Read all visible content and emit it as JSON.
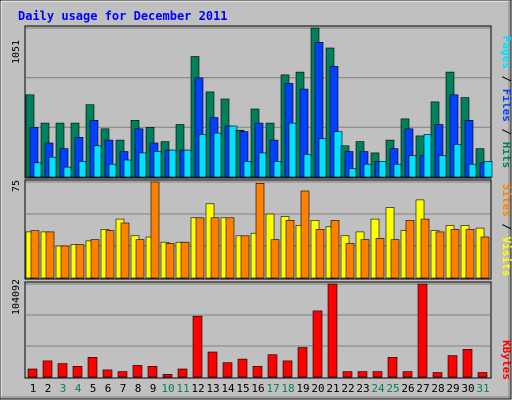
{
  "title": "Daily usage for December 2011",
  "colors": {
    "background": "#c0c0c0",
    "title": "#0000ff",
    "hits": "#00805c",
    "files": "#0040ff",
    "pages": "#00e0ff",
    "visits": "#ffff00",
    "sites": "#ff8000",
    "kbytes": "#ff0000",
    "weekend_day": "#00805c",
    "weekday": "#000000"
  },
  "chart_data": [
    {
      "type": "bar",
      "panel": "hits-files-pages",
      "ymax_label": "1051",
      "ylim": [
        0,
        1051
      ],
      "categories": [
        "1",
        "2",
        "3",
        "4",
        "5",
        "6",
        "7",
        "8",
        "9",
        "10",
        "11",
        "12",
        "13",
        "14",
        "15",
        "16",
        "17",
        "18",
        "19",
        "20",
        "21",
        "22",
        "23",
        "24",
        "25",
        "26",
        "27",
        "28",
        "29",
        "30",
        "31"
      ],
      "weekend_days": [
        "3",
        "4",
        "10",
        "11",
        "17",
        "18",
        "24",
        "25",
        "31"
      ],
      "grid": true,
      "legend_placement": "right",
      "series": [
        {
          "name": "Hits",
          "color_key": "hits",
          "values": [
            580,
            380,
            380,
            380,
            510,
            340,
            260,
            400,
            350,
            250,
            370,
            850,
            600,
            550,
            330,
            480,
            380,
            720,
            740,
            1051,
            910,
            220,
            250,
            170,
            260,
            410,
            290,
            530,
            740,
            560,
            200
          ]
        },
        {
          "name": "Files",
          "color_key": "files",
          "values": [
            350,
            240,
            200,
            280,
            400,
            260,
            180,
            340,
            240,
            190,
            190,
            700,
            420,
            360,
            320,
            380,
            260,
            660,
            620,
            950,
            780,
            180,
            180,
            110,
            200,
            340,
            150,
            370,
            580,
            400,
            100
          ]
        },
        {
          "name": "Pages",
          "color_key": "pages",
          "values": [
            100,
            140,
            70,
            110,
            220,
            90,
            120,
            170,
            180,
            190,
            190,
            300,
            310,
            360,
            110,
            170,
            110,
            380,
            160,
            270,
            320,
            60,
            90,
            110,
            90,
            150,
            300,
            150,
            230,
            90,
            110
          ]
        }
      ]
    },
    {
      "type": "bar",
      "panel": "visits-sites",
      "ymax_label": "75",
      "ylim": [
        0,
        75
      ],
      "categories": [
        "1",
        "2",
        "3",
        "4",
        "5",
        "6",
        "7",
        "8",
        "9",
        "10",
        "11",
        "12",
        "13",
        "14",
        "15",
        "16",
        "17",
        "18",
        "19",
        "20",
        "21",
        "22",
        "23",
        "24",
        "25",
        "26",
        "27",
        "28",
        "29",
        "30",
        "31"
      ],
      "grid": true,
      "legend_placement": "right",
      "series": [
        {
          "name": "Visits",
          "color_key": "visits",
          "values": [
            36,
            36,
            25,
            26,
            29,
            38,
            46,
            33,
            32,
            28,
            28,
            47,
            58,
            47,
            33,
            35,
            50,
            48,
            41,
            45,
            40,
            33,
            36,
            46,
            55,
            37,
            61,
            37,
            41,
            41,
            39
          ]
        },
        {
          "name": "Sites",
          "color_key": "sites",
          "values": [
            37,
            36,
            25,
            26,
            30,
            37,
            43,
            30,
            75,
            27,
            28,
            47,
            47,
            47,
            33,
            74,
            30,
            45,
            68,
            38,
            45,
            27,
            30,
            31,
            30,
            45,
            46,
            36,
            38,
            38,
            32
          ]
        }
      ]
    },
    {
      "type": "bar",
      "panel": "kbytes",
      "ymax_label": "104092",
      "ylim": [
        0,
        104092
      ],
      "categories": [
        "1",
        "2",
        "3",
        "4",
        "5",
        "6",
        "7",
        "8",
        "9",
        "10",
        "11",
        "12",
        "13",
        "14",
        "15",
        "16",
        "17",
        "18",
        "19",
        "20",
        "21",
        "22",
        "23",
        "24",
        "25",
        "26",
        "27",
        "28",
        "29",
        "30",
        "31"
      ],
      "grid": true,
      "legend_placement": "right",
      "series": [
        {
          "name": "KBytes",
          "color_key": "kbytes",
          "values": [
            9000,
            18000,
            15000,
            12000,
            22000,
            8000,
            6000,
            13000,
            12000,
            3000,
            9000,
            68000,
            28000,
            16000,
            20000,
            12000,
            25000,
            18000,
            33000,
            74000,
            104092,
            6000,
            6000,
            6000,
            22000,
            6000,
            104000,
            5000,
            24000,
            31000,
            5000
          ]
        }
      ]
    }
  ]
}
